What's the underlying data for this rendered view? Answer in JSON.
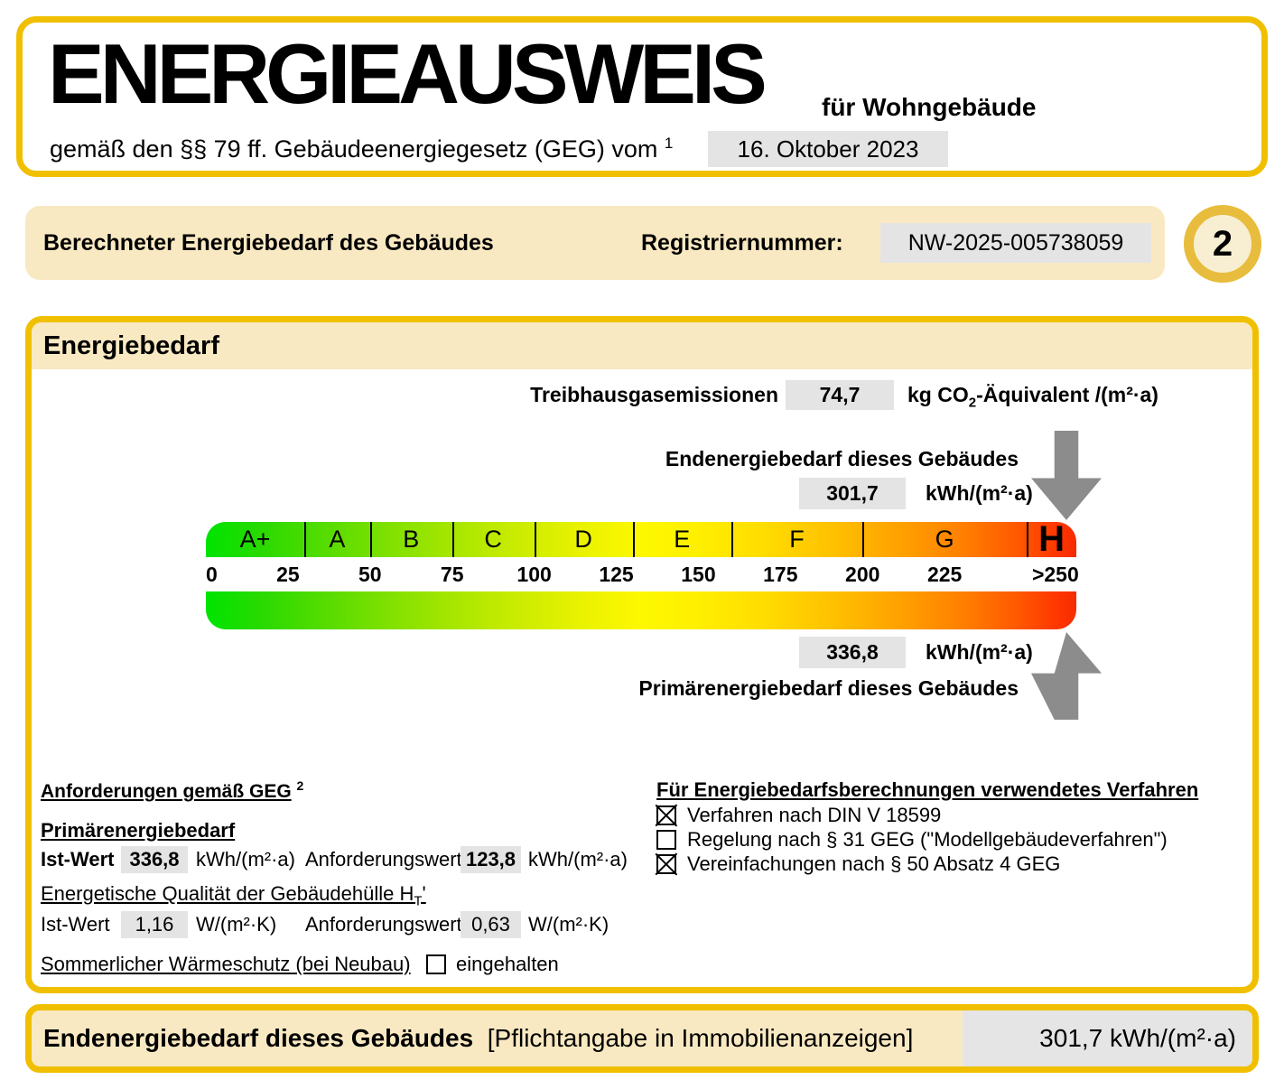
{
  "header": {
    "title": "ENERGIEAUSWEIS",
    "subtitle": "für Wohngebäude",
    "law_text": "gemäß den §§ 79 ff. Gebäudeenergiegesetz (GEG) vom",
    "law_footnote": "1",
    "date": "16. Oktober 2023"
  },
  "section_bar": {
    "title": "Berechneter Energiebedarf des Gebäudes",
    "reg_label": "Registriernummer:",
    "reg_value": "NW-2025-005738059",
    "page_number": "2"
  },
  "energy_panel": {
    "title": "Energiebedarf",
    "ghg": {
      "label": "Treibhausgasemissionen",
      "value": "74,7",
      "unit_pre": "kg CO",
      "unit_sub": "2",
      "unit_post": "-Äquivalent /(m²·a)"
    },
    "end_energy": {
      "label": "Endenergiebedarf dieses Gebäudes",
      "value": "301,7",
      "unit": "kWh/(m²·a)"
    },
    "primary_energy": {
      "label": "Primärenergiebedarf dieses Gebäudes",
      "value": "336,8",
      "unit": "kWh/(m²·a)"
    },
    "requirements": {
      "heading": "Anforderungen gemäß GEG",
      "heading_footnote": "2",
      "primary": {
        "heading": "Primärenergiebedarf",
        "ist_label": "Ist-Wert",
        "ist_value": "336,8",
        "ist_unit": "kWh/(m²·a)",
        "req_label": "Anforderungswert",
        "req_value": "123,8",
        "req_unit": "kWh/(m²·a)"
      },
      "envelope": {
        "heading_pre": "Energetische Qualität der Gebäudehülle H",
        "heading_sub": "T",
        "heading_post": "'",
        "ist_label": "Ist-Wert",
        "ist_value": "1,16",
        "ist_unit": "W/(m²·K)",
        "req_label": "Anforderungswert",
        "req_value": "0,63",
        "req_unit": "W/(m²·K)"
      },
      "summer": {
        "label": "Sommerlicher Wärmeschutz (bei Neubau)",
        "checkbox_label": "eingehalten",
        "checked": false
      }
    },
    "method": {
      "heading": "Für Energiebedarfsberechnungen verwendetes Verfahren",
      "items": [
        {
          "label": "Verfahren nach DIN V 18599",
          "checked": true
        },
        {
          "label": "Regelung nach § 31 GEG (\"Modellgebäudeverfahren\")",
          "checked": false
        },
        {
          "label": "Vereinfachungen nach § 50 Absatz 4 GEG",
          "checked": true
        }
      ]
    }
  },
  "footer_bar": {
    "label_bold": "Endenergiebedarf dieses Gebäudes",
    "label_regular": "[Pflichtangabe in Immobilienanzeigen]",
    "value": "301,7 kWh/(m²·a)"
  },
  "colors": {
    "accent_gold": "#F0C000",
    "beige": "#F9E9C2",
    "value_box_gray": "#E4E4E4",
    "arrow_gray": "#8C8C8C",
    "circle_ring_gold": "#E8BC3C"
  },
  "chart_data": {
    "type": "scale",
    "title": "Energiebedarf",
    "axis_unit": "kWh/(m²·a)",
    "axis_max_value": 250,
    "h_zone_start_pct": 94.3,
    "tick_values": [
      0,
      25,
      50,
      75,
      100,
      125,
      150,
      175,
      200,
      225
    ],
    "overflow_tick_label": ">250",
    "classes": [
      {
        "label": "A+",
        "from": 0,
        "to": 30
      },
      {
        "label": "A",
        "from": 30,
        "to": 50
      },
      {
        "label": "B",
        "from": 50,
        "to": 75
      },
      {
        "label": "C",
        "from": 75,
        "to": 100
      },
      {
        "label": "D",
        "from": 100,
        "to": 130
      },
      {
        "label": "E",
        "from": 130,
        "to": 160
      },
      {
        "label": "F",
        "from": 160,
        "to": 200
      },
      {
        "label": "G",
        "from": 200,
        "to": 250
      },
      {
        "label": "H",
        "from": 250,
        "to": null
      }
    ],
    "markers": [
      {
        "name": "Endenergiebedarf dieses Gebäudes",
        "value": 301.7,
        "arrow": "down-from-top"
      },
      {
        "name": "Primärenergiebedarf dieses Gebäudes",
        "value": 336.8,
        "arrow": "up-from-bottom"
      }
    ],
    "gradient": [
      "#00E400",
      "#8BE200",
      "#FDF800",
      "#FFC100",
      "#FF7F00",
      "#F62B00"
    ]
  }
}
